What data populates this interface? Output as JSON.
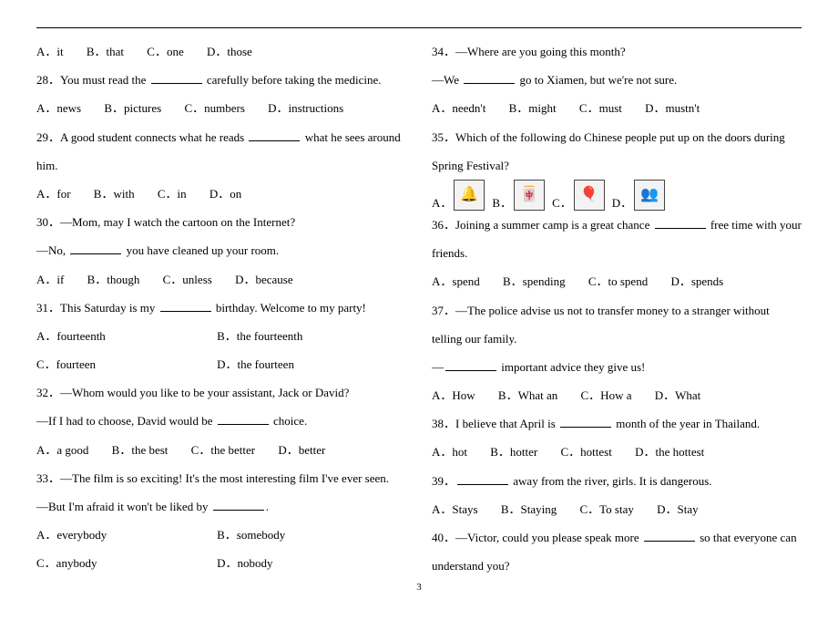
{
  "page_number": "3",
  "left": {
    "q27opts": {
      "a": "A．it",
      "b": "B．that",
      "c": "C．one",
      "d": "D．those"
    },
    "q28": "28．You must read the ",
    "q28_tail": " carefully before taking the medicine.",
    "q28opts": {
      "a": "A．news",
      "b": "B．pictures",
      "c": "C．numbers",
      "d": "D．instructions"
    },
    "q29": "29．A good student connects what he reads ",
    "q29_tail": " what he sees around",
    "q29_line2": "him.",
    "q29opts": {
      "a": "A．for",
      "b": "B．with",
      "c": "C．in",
      "d": "D．on"
    },
    "q30": "30．—Mom, may I watch the cartoon on the Internet?",
    "q30b_pre": "—No, ",
    "q30b_post": " you have cleaned up your room.",
    "q30opts": {
      "a": "A．if",
      "b": "B．though",
      "c": "C．unless",
      "d": "D．because"
    },
    "q31_pre": "31．This Saturday is my ",
    "q31_post": " birthday. Welcome to my party!",
    "q31opts": {
      "a": "A．fourteenth",
      "b": "B．the fourteenth",
      "c": "C．fourteen",
      "d": "D．the fourteen"
    },
    "q32a": "32．—Whom would you like to be your assistant, Jack or David?",
    "q32b_pre": "—If I had to choose, David would be ",
    "q32b_post": " choice.",
    "q32opts": {
      "a": "A．a good",
      "b": "B．the best",
      "c": "C．the better",
      "d": "D．better"
    },
    "q33a": "33．—The film is so exciting! It's the most interesting film I've ever seen.",
    "q33b_pre": "—But I'm afraid it won't be liked by ",
    "q33b_post": ".",
    "q33opts": {
      "a": "A．everybody",
      "b": "B．somebody",
      "c": "C．anybody",
      "d": "D．nobody"
    }
  },
  "right": {
    "q34a": "34．—Where are you going this month?",
    "q34b_pre": "—We ",
    "q34b_post": " go to Xiamen, but we're not sure.",
    "q34opts": {
      "a": "A．needn't",
      "b": "B．might",
      "c": "C．must",
      "d": "D．mustn't"
    },
    "q35a": "35．Which of the following do Chinese people put up on the doors during",
    "q35b": "Spring Festival?",
    "q35labels": {
      "a": "A．",
      "b": "B．",
      "c": "C．",
      "d": "D．"
    },
    "q36_pre": "36．Joining a summer camp is a great chance ",
    "q36_post": " free time with your",
    "q36_line2": "friends.",
    "q36opts": {
      "a": "A．spend",
      "b": "B．spending",
      "c": "C．to spend",
      "d": "D．spends"
    },
    "q37a": "37．—The police advise us not to transfer money to a stranger without",
    "q37b": "telling our family.",
    "q37c_pre": "—",
    "q37c_post": " important advice they give us!",
    "q37opts": {
      "a": "A．How",
      "b": "B．What an",
      "c": "C．How a",
      "d": "D．What"
    },
    "q38_pre": "38．I believe that April is ",
    "q38_post": " month of the year in Thailand.",
    "q38opts": {
      "a": "A．hot",
      "b": "B．hotter",
      "c": "C．hottest",
      "d": "D．the hottest"
    },
    "q39_pre": "39．",
    "q39_post": " away from the river, girls. It is dangerous.",
    "q39opts": {
      "a": "A．Stays",
      "b": "B．Staying",
      "c": "C．To stay",
      "d": "D．Stay"
    },
    "q40_pre": "40．—Victor, could you please speak more ",
    "q40_post": " so that everyone can",
    "q40_line2": "understand you?"
  },
  "icons": {
    "bell": "🔔",
    "scroll": "🀄",
    "balloon": "🎈",
    "figure": "👥"
  }
}
